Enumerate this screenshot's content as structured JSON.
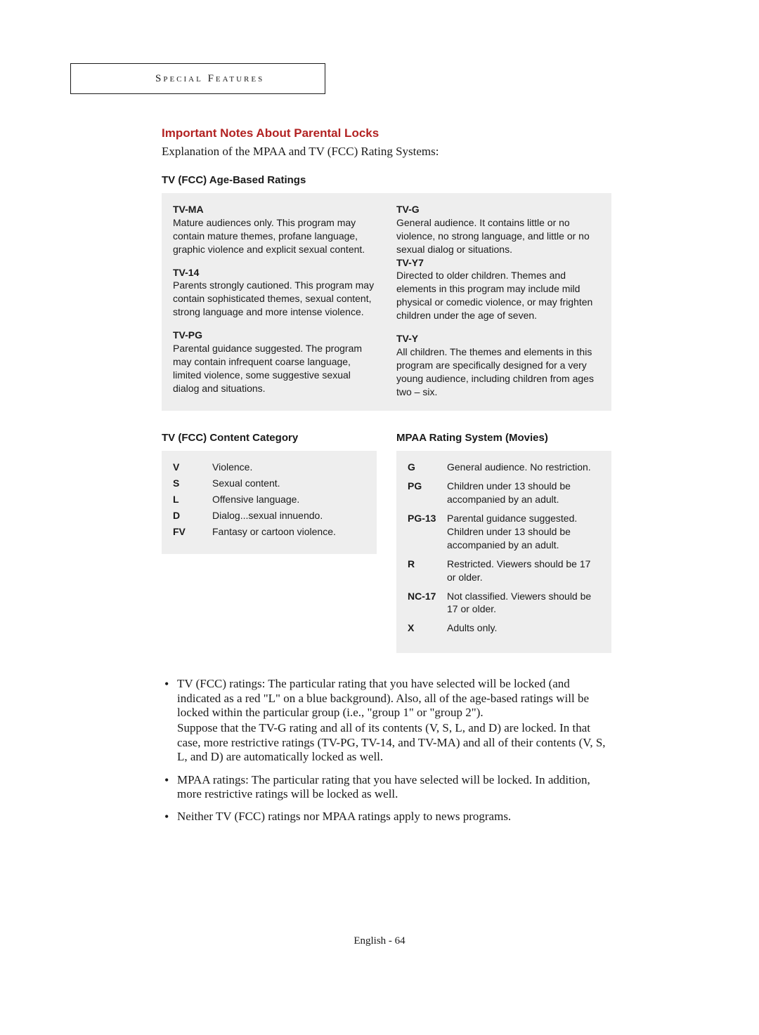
{
  "colors": {
    "accent": "#b22222",
    "text": "#1a1a1a",
    "boxBg": "#eeeeee",
    "pageBg": "#ffffff"
  },
  "header": {
    "label": "Special Features"
  },
  "title": "Important Notes About Parental Locks",
  "intro": "Explanation of the MPAA and TV (FCC) Rating Systems:",
  "ageSection": {
    "heading": "TV (FCC) Age-Based Ratings",
    "left": [
      {
        "code": "TV-MA",
        "desc": "Mature audiences only. This program may contain mature themes, profane language, graphic violence and explicit sexual content."
      },
      {
        "code": "TV-14",
        "desc": "Parents strongly cautioned. This program may contain sophisticated themes, sexual content, strong language and more intense violence."
      },
      {
        "code": "TV-PG",
        "desc": "Parental guidance suggested. The program may contain infrequent coarse language, limited violence, some suggestive sexual dialog and situations."
      }
    ],
    "right": [
      {
        "code": "TV-G",
        "desc": "General audience.  It contains little or no violence, no strong language, and little or no sexual dialog or situations."
      },
      {
        "code": "TV-Y7",
        "desc": "Directed to older children. Themes and elements in this program may include mild physical or comedic violence, or may frighten children under the age of seven."
      },
      {
        "code": "TV-Y",
        "desc": "All children. The themes and elements in this program are specifically designed for a very young audience, including children from ages two – six."
      }
    ]
  },
  "contentSection": {
    "heading": "TV (FCC) Content Category",
    "items": [
      {
        "code": "V",
        "desc": "Violence."
      },
      {
        "code": "S",
        "desc": "Sexual content."
      },
      {
        "code": "L",
        "desc": "Offensive language."
      },
      {
        "code": "D",
        "desc": "Dialog...sexual innuendo."
      },
      {
        "code": "FV",
        "desc": "Fantasy or cartoon violence."
      }
    ]
  },
  "mpaaSection": {
    "heading": "MPAA Rating System (Movies)",
    "items": [
      {
        "code": "G",
        "desc": "General audience. No restriction."
      },
      {
        "code": "PG",
        "desc": "Children under 13 should be accompanied by an adult."
      },
      {
        "code": "PG-13",
        "desc": "Parental guidance suggested. Children under 13 should be accompanied by an adult."
      },
      {
        "code": "R",
        "desc": "Restricted. Viewers should be 17 or older."
      },
      {
        "code": "NC-17",
        "desc": "Not classified. Viewers should be 17 or older."
      },
      {
        "code": "X",
        "desc": "Adults only."
      }
    ]
  },
  "notes": [
    {
      "p1": "TV (FCC) ratings: The particular rating that you have selected will be locked (and indicated as a red \"L\" on a blue background). Also, all of the age-based ratings will be locked within the particular group (i.e., \"group 1\" or \"group 2\").",
      "p2": "Suppose that the TV-G rating and all of its contents (V, S, L, and D) are locked. In that case, more restrictive ratings (TV-PG, TV-14, and TV-MA) and all of their contents (V, S, L, and D) are automatically locked as well."
    },
    {
      "p1": "MPAA ratings: The particular rating that you have selected will be locked. In addition, more restrictive ratings will be locked as well."
    },
    {
      "p1": "Neither TV (FCC) ratings nor MPAA ratings apply to news programs."
    }
  ],
  "footer": "English - 64"
}
